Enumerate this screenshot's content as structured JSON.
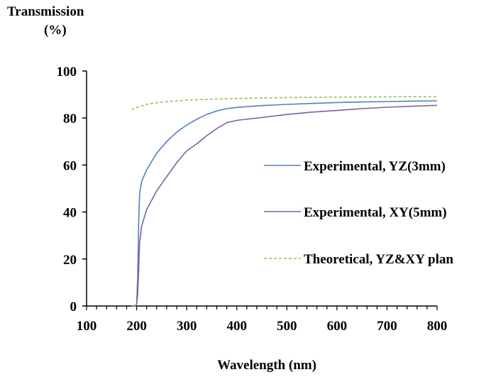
{
  "chart_data": {
    "type": "line",
    "title": "",
    "ylabel_line1": "Transmission",
    "ylabel_line2": "(%)",
    "xlabel": "Wavelength (nm)",
    "xlim": [
      100,
      800
    ],
    "ylim": [
      0,
      100
    ],
    "x_ticks": [
      "100",
      "200",
      "300",
      "400",
      "500",
      "600",
      "700",
      "800"
    ],
    "y_ticks": [
      "0",
      "20",
      "40",
      "60",
      "80",
      "100"
    ],
    "grid": false,
    "legend_position": "right",
    "series": [
      {
        "name": "Experimental, YZ(3mm)",
        "color": "#4f81bd",
        "dash": "solid",
        "x": [
          190,
          195,
          198,
          200,
          202,
          204,
          206,
          210,
          220,
          240,
          260,
          280,
          300,
          320,
          340,
          360,
          380,
          400,
          450,
          500,
          550,
          600,
          650,
          700,
          750,
          800
        ],
        "y": [
          0,
          0,
          0,
          1,
          12,
          35,
          48,
          53,
          58,
          65,
          70,
          74,
          77,
          79.5,
          81.5,
          83,
          84,
          84.5,
          85.3,
          85.8,
          86.2,
          86.6,
          86.8,
          87,
          87.2,
          87.3
        ]
      },
      {
        "name": "Experimental, XY(5mm)",
        "color": "#7f5fa0",
        "dash": "solid",
        "x": [
          195,
          198,
          200,
          202,
          204,
          206,
          210,
          220,
          240,
          260,
          280,
          300,
          320,
          340,
          360,
          380,
          400,
          450,
          500,
          550,
          600,
          650,
          700,
          750,
          800
        ],
        "y": [
          0,
          0,
          1,
          5,
          15,
          27,
          34,
          41,
          49,
          55,
          61,
          66,
          69,
          72.5,
          75.5,
          78,
          79,
          80.2,
          81.5,
          82.5,
          83.2,
          84,
          84.6,
          85,
          85.4
        ]
      },
      {
        "name": "Theoretical, YZ&XY plan",
        "color": "#9bbb59",
        "dash": "dashed",
        "x": [
          190,
          200,
          220,
          250,
          300,
          350,
          400,
          450,
          500,
          550,
          600,
          650,
          700,
          750,
          800
        ],
        "y": [
          83.5,
          84.5,
          85.8,
          86.8,
          87.6,
          88,
          88.3,
          88.5,
          88.7,
          88.8,
          88.9,
          88.95,
          89,
          89.05,
          89.1
        ]
      }
    ]
  }
}
